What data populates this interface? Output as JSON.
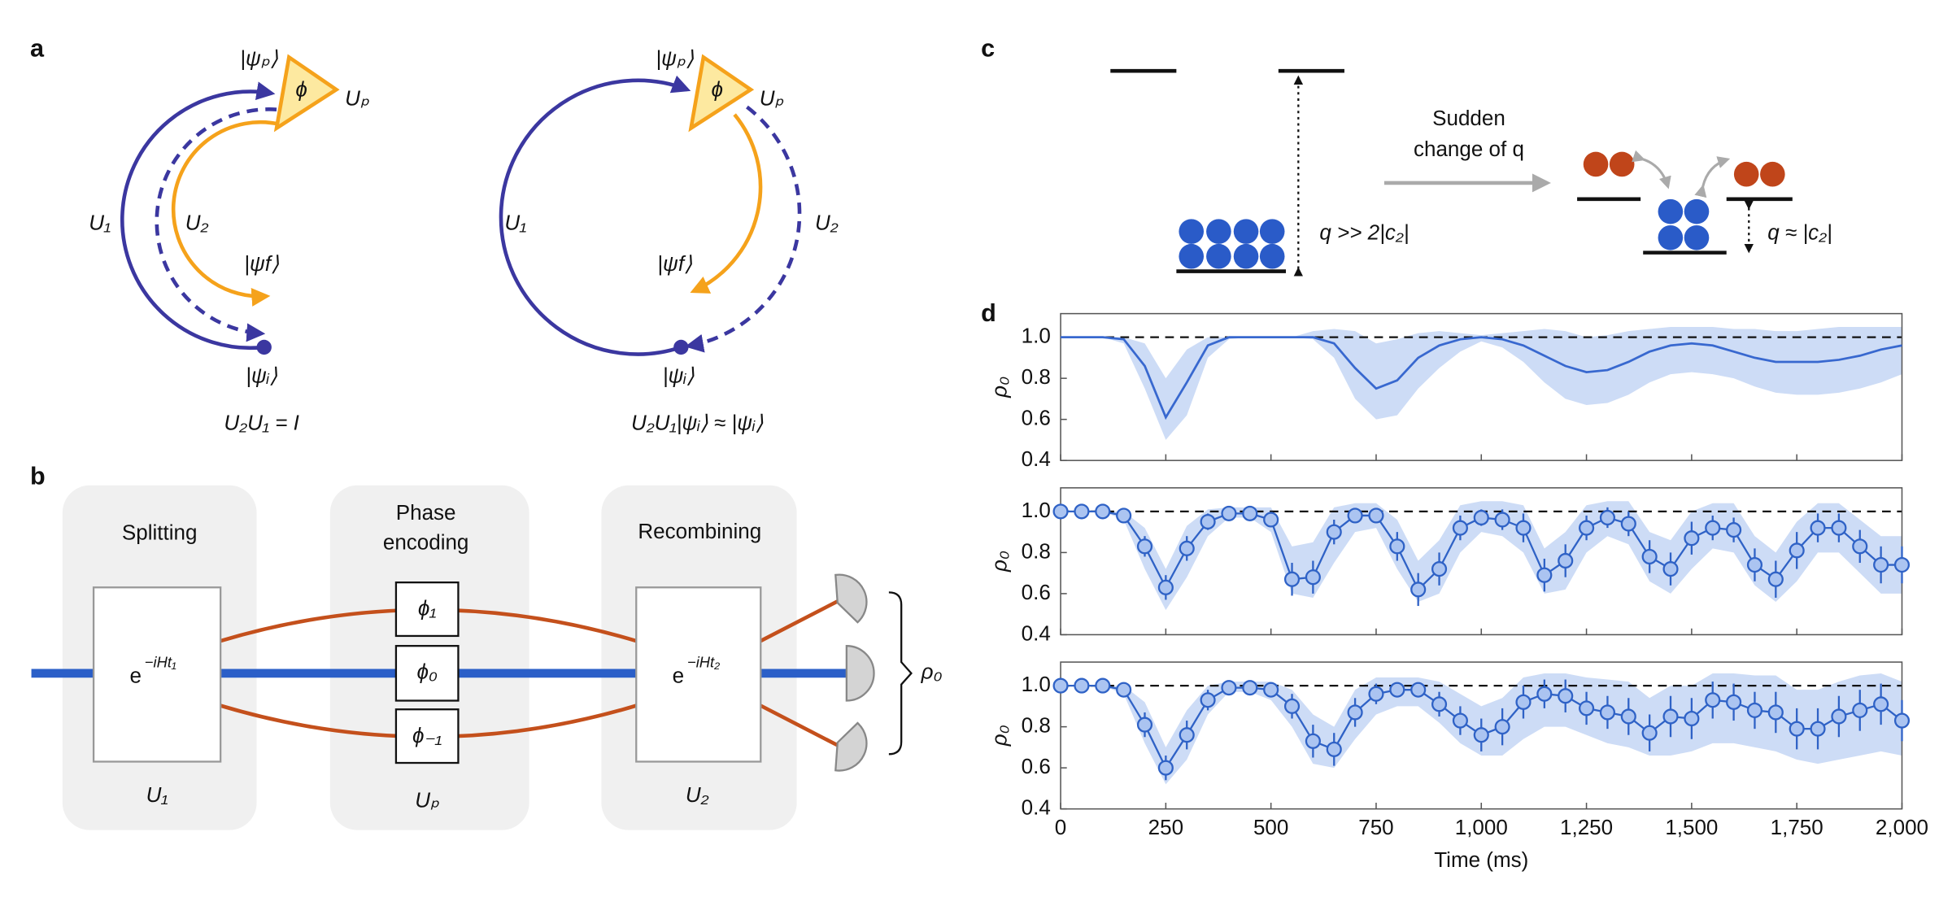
{
  "panel_labels": [
    "a",
    "b",
    "c",
    "d"
  ],
  "panel_a": {
    "left": {
      "psi_p": "|ψₚ⟩",
      "phi": "ϕ",
      "Up": "Uₚ",
      "U1": "U₁",
      "U2": "U₂",
      "psi_f": "|ψf⟩",
      "psi_i": "|ψᵢ⟩",
      "equation": "U₂U₁ = I"
    },
    "right": {
      "psi_p": "|ψₚ⟩",
      "phi": "ϕ",
      "Up": "Uₚ",
      "U1": "U₁",
      "U2": "U₂",
      "psi_f": "|ψf⟩",
      "psi_i": "|ψᵢ⟩",
      "equation": "U₂U₁|ψᵢ⟩ ≈ |ψᵢ⟩"
    }
  },
  "panel_b": {
    "stages": [
      [
        "Splitting"
      ],
      [
        "Phase",
        "encoding"
      ],
      [
        "Recombining"
      ]
    ],
    "operators": [
      "U₁",
      "Uₚ",
      "U₂"
    ],
    "box1": {
      "base": "e",
      "exponent": "−iHt₁"
    },
    "box2": {
      "base": "e",
      "exponent": "−iHt₂"
    },
    "phases": [
      "ϕ₁",
      "ϕ₀",
      "ϕ₋₁"
    ],
    "output": "ρ₀"
  },
  "panel_c": {
    "arrow_label": [
      "Sudden",
      "change of q"
    ],
    "left_condition": "q >> 2|c₂|",
    "right_condition": "q ≈ |c₂|"
  },
  "chart_data": [
    {
      "type": "line",
      "ylabel": "ρ₀",
      "xlim": [
        0,
        2000
      ],
      "ylim": [
        0.4,
        1.115
      ],
      "xticks": [
        0,
        250,
        500,
        750,
        1000,
        1250,
        1500,
        1750,
        2000
      ],
      "yticks": [
        0.4,
        0.6,
        0.8,
        {
          "value": 1,
          "label": "1.0"
        }
      ],
      "hline": 1,
      "x": [
        0,
        50,
        100,
        150,
        200,
        250,
        300,
        350,
        400,
        450,
        500,
        550,
        600,
        650,
        700,
        750,
        800,
        850,
        900,
        950,
        1000,
        1050,
        1100,
        1150,
        1200,
        1250,
        1300,
        1350,
        1400,
        1450,
        1500,
        1550,
        1600,
        1650,
        1700,
        1750,
        1800,
        1850,
        1900,
        1950,
        2000
      ],
      "line": {
        "color": "#3868cf",
        "values": [
          1,
          1,
          1,
          0.99,
          0.86,
          0.61,
          0.78,
          0.96,
          1,
          1,
          1,
          1,
          1,
          0.97,
          0.85,
          0.75,
          0.79,
          0.9,
          0.96,
          0.99,
          1,
          0.99,
          0.96,
          0.91,
          0.86,
          0.83,
          0.84,
          0.88,
          0.93,
          0.96,
          0.97,
          0.96,
          0.93,
          0.9,
          0.88,
          0.88,
          0.88,
          0.89,
          0.91,
          0.94,
          0.96
        ]
      },
      "band": {
        "color": "#cddcf6",
        "lower": [
          1,
          1,
          1,
          0.97,
          0.75,
          0.5,
          0.62,
          0.9,
          0.99,
          1,
          1,
          1,
          0.99,
          0.9,
          0.7,
          0.6,
          0.62,
          0.75,
          0.85,
          0.93,
          0.98,
          0.95,
          0.88,
          0.78,
          0.7,
          0.67,
          0.68,
          0.72,
          0.78,
          0.82,
          0.83,
          0.82,
          0.8,
          0.76,
          0.73,
          0.72,
          0.72,
          0.73,
          0.75,
          0.78,
          0.82
        ],
        "upper": [
          1,
          1,
          1,
          1,
          0.97,
          0.8,
          0.94,
          1,
          1,
          1,
          1,
          1,
          1.03,
          1.04,
          1.03,
          0.97,
          0.99,
          1.02,
          1.03,
          1.02,
          1.01,
          1.02,
          1.03,
          1.04,
          1.03,
          1,
          1.01,
          1.03,
          1.04,
          1.05,
          1.05,
          1.05,
          1.04,
          1.04,
          1.03,
          1.03,
          1.04,
          1.05,
          1.05,
          1.05,
          1.05
        ]
      }
    },
    {
      "type": "errorbar",
      "ylabel": "ρ₀",
      "xlim": [
        0,
        2000
      ],
      "ylim": [
        0.4,
        1.115
      ],
      "xticks": [
        0,
        250,
        500,
        750,
        1000,
        1250,
        1500,
        1750,
        2000
      ],
      "yticks": [
        0.4,
        0.6,
        0.8,
        {
          "value": 1,
          "label": "1.0"
        }
      ],
      "hline": 1,
      "x": [
        0,
        50,
        100,
        150,
        200,
        250,
        300,
        350,
        400,
        450,
        500,
        550,
        600,
        650,
        700,
        750,
        800,
        850,
        900,
        950,
        1000,
        1050,
        1100,
        1150,
        1200,
        1250,
        1300,
        1350,
        1400,
        1450,
        1500,
        1550,
        1600,
        1650,
        1700,
        1750,
        1800,
        1850,
        1900,
        1950,
        2000
      ],
      "points": {
        "color": "#2f62c6",
        "fill": "#abc4f1",
        "values": [
          1,
          1,
          1,
          0.98,
          0.83,
          0.63,
          0.82,
          0.95,
          0.99,
          0.99,
          0.96,
          0.67,
          0.68,
          0.9,
          0.98,
          0.98,
          0.83,
          0.62,
          0.72,
          0.92,
          0.97,
          0.96,
          0.92,
          0.69,
          0.76,
          0.92,
          0.97,
          0.94,
          0.78,
          0.72,
          0.87,
          0.92,
          0.91,
          0.74,
          0.67,
          0.81,
          0.92,
          0.92,
          0.83,
          0.74,
          0.74
        ],
        "errors": [
          0.01,
          0.01,
          0.01,
          0.02,
          0.05,
          0.06,
          0.06,
          0.04,
          0.02,
          0.02,
          0.03,
          0.08,
          0.08,
          0.06,
          0.03,
          0.03,
          0.07,
          0.08,
          0.08,
          0.06,
          0.04,
          0.05,
          0.07,
          0.08,
          0.08,
          0.06,
          0.05,
          0.06,
          0.08,
          0.08,
          0.08,
          0.06,
          0.06,
          0.08,
          0.09,
          0.09,
          0.07,
          0.07,
          0.08,
          0.09,
          0.09
        ]
      },
      "band": {
        "color": "#cddcf6",
        "lower": [
          1,
          1,
          1,
          0.96,
          0.72,
          0.52,
          0.68,
          0.88,
          0.97,
          0.97,
          0.9,
          0.6,
          0.58,
          0.75,
          0.9,
          0.92,
          0.72,
          0.56,
          0.6,
          0.8,
          0.9,
          0.88,
          0.8,
          0.6,
          0.62,
          0.8,
          0.88,
          0.84,
          0.66,
          0.6,
          0.72,
          0.82,
          0.8,
          0.64,
          0.56,
          0.66,
          0.8,
          0.8,
          0.7,
          0.6,
          0.6
        ],
        "upper": [
          1,
          1,
          1,
          1,
          0.92,
          0.72,
          0.93,
          1.01,
          1.02,
          1.02,
          1.02,
          0.83,
          0.85,
          1.02,
          1.04,
          1.04,
          0.96,
          0.76,
          0.86,
          1.03,
          1.05,
          1.05,
          1.03,
          0.82,
          0.9,
          1.03,
          1.05,
          1.05,
          0.9,
          0.86,
          1,
          1.04,
          1.04,
          0.88,
          0.8,
          0.95,
          1.04,
          1.04,
          0.96,
          0.88,
          0.88
        ]
      }
    },
    {
      "type": "errorbar",
      "ylabel": "ρ₀",
      "xlabel": "Time (ms)",
      "xlim": [
        0,
        2000
      ],
      "ylim": [
        0.4,
        1.115
      ],
      "xticks": [
        0,
        250,
        500,
        750,
        {
          "value": 1000,
          "label": "1,000"
        },
        {
          "value": 1250,
          "label": "1,250"
        },
        {
          "value": 1500,
          "label": "1,500"
        },
        {
          "value": 1750,
          "label": "1,750"
        },
        {
          "value": 2000,
          "label": "2,000"
        }
      ],
      "yticks": [
        0.4,
        0.6,
        0.8,
        {
          "value": 1,
          "label": "1.0"
        }
      ],
      "hline": 1,
      "x": [
        0,
        50,
        100,
        150,
        200,
        250,
        300,
        350,
        400,
        450,
        500,
        550,
        600,
        650,
        700,
        750,
        800,
        850,
        900,
        950,
        1000,
        1050,
        1100,
        1150,
        1200,
        1250,
        1300,
        1350,
        1400,
        1450,
        1500,
        1550,
        1600,
        1650,
        1700,
        1750,
        1800,
        1850,
        1900,
        1950,
        2000
      ],
      "points": {
        "color": "#2f62c6",
        "fill": "#abc4f1",
        "values": [
          1,
          1,
          1,
          0.98,
          0.81,
          0.6,
          0.76,
          0.93,
          0.99,
          0.99,
          0.98,
          0.9,
          0.73,
          0.69,
          0.87,
          0.96,
          0.98,
          0.98,
          0.91,
          0.83,
          0.76,
          0.8,
          0.92,
          0.96,
          0.95,
          0.89,
          0.87,
          0.85,
          0.77,
          0.85,
          0.84,
          0.93,
          0.92,
          0.88,
          0.87,
          0.79,
          0.79,
          0.85,
          0.88,
          0.91,
          0.83
        ],
        "errors": [
          0.01,
          0.01,
          0.01,
          0.02,
          0.06,
          0.06,
          0.07,
          0.05,
          0.02,
          0.02,
          0.03,
          0.06,
          0.08,
          0.08,
          0.07,
          0.05,
          0.03,
          0.03,
          0.06,
          0.07,
          0.08,
          0.09,
          0.08,
          0.07,
          0.08,
          0.08,
          0.08,
          0.09,
          0.09,
          0.1,
          0.1,
          0.09,
          0.09,
          0.09,
          0.1,
          0.1,
          0.1,
          0.1,
          0.1,
          0.1,
          0.1
        ]
      },
      "band": {
        "color": "#cddcf6",
        "lower": [
          1,
          1,
          1,
          0.96,
          0.72,
          0.52,
          0.64,
          0.86,
          0.97,
          0.97,
          0.93,
          0.8,
          0.62,
          0.6,
          0.74,
          0.86,
          0.9,
          0.9,
          0.82,
          0.72,
          0.66,
          0.66,
          0.74,
          0.8,
          0.8,
          0.76,
          0.72,
          0.7,
          0.66,
          0.66,
          0.68,
          0.72,
          0.72,
          0.7,
          0.68,
          0.64,
          0.62,
          0.64,
          0.66,
          0.68,
          0.66
        ],
        "upper": [
          1,
          1,
          1,
          1,
          0.92,
          0.7,
          0.88,
          1,
          1.02,
          1.02,
          1.02,
          0.98,
          0.86,
          0.8,
          0.98,
          1.04,
          1.04,
          1.04,
          1.02,
          0.96,
          0.9,
          0.94,
          1.04,
          1.06,
          1.06,
          1.04,
          1.03,
          1.02,
          0.94,
          1,
          1,
          1.06,
          1.06,
          1.05,
          1.05,
          0.98,
          0.98,
          1.02,
          1.05,
          1.06,
          1.02
        ]
      }
    }
  ]
}
